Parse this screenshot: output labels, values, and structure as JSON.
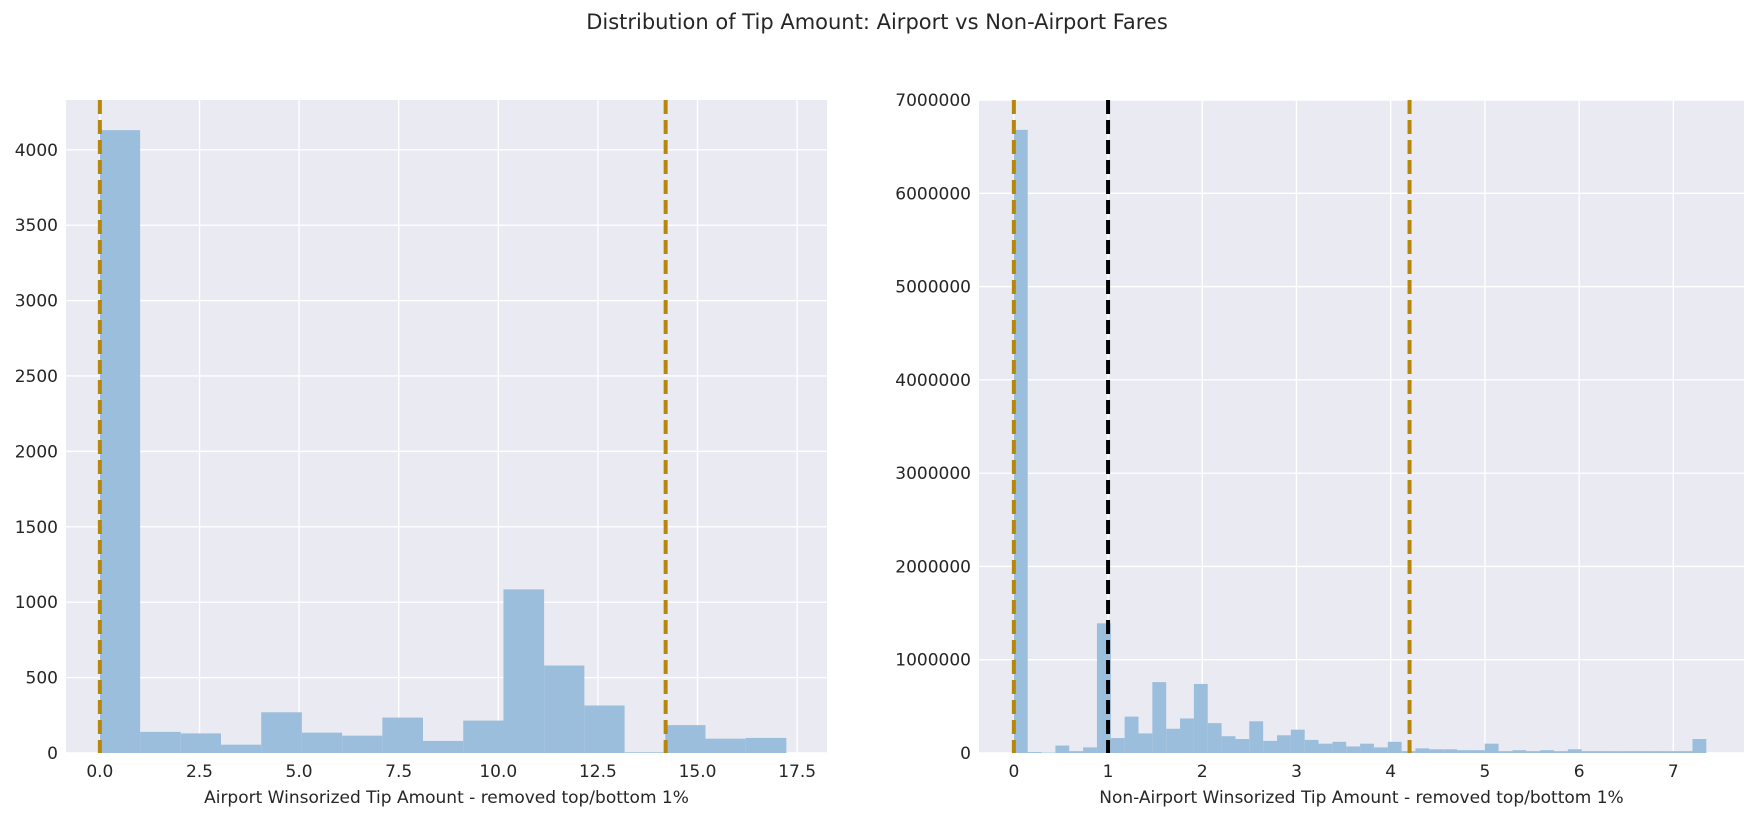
{
  "figure": {
    "title": "Distribution of Tip Amount: Airport vs Non-Airport Fares"
  },
  "colors": {
    "background_axes": "#EAEAF2",
    "grid": "#FFFFFF",
    "bars": "#9BBEDC",
    "guide_line": "#B8860B",
    "mean_line": "#000000",
    "text": "#262626"
  },
  "chart_data": [
    {
      "type": "bar",
      "subtype": "histogram",
      "xlabel": "Airport Winsorized Tip Amount - removed top/bottom 1%",
      "ylabel": "",
      "xlim": [
        -0.85,
        18.25
      ],
      "ylim": [
        0,
        4330
      ],
      "xticks": [
        0,
        2.5,
        5,
        7.5,
        10,
        12.5,
        15,
        17.5
      ],
      "xtick_labels": [
        "0.0",
        "2.5",
        "5.0",
        "7.5",
        "10.0",
        "12.5",
        "15.0",
        "17.5"
      ],
      "yticks": [
        0,
        500,
        1000,
        1500,
        2000,
        2500,
        3000,
        3500,
        4000
      ],
      "ytick_labels": [
        "0",
        "500",
        "1000",
        "1500",
        "2000",
        "2500",
        "3000",
        "3500",
        "4000"
      ],
      "grid": true,
      "bin_edges": [
        0,
        1.01,
        2.03,
        3.04,
        4.05,
        5.07,
        6.08,
        7.09,
        8.11,
        9.12,
        10.13,
        11.15,
        12.16,
        13.17,
        14.19,
        15.2,
        16.21,
        17.23
      ],
      "values": [
        4130,
        140,
        130,
        55,
        270,
        135,
        115,
        235,
        80,
        215,
        1085,
        580,
        315,
        5,
        185,
        95,
        100
      ],
      "vlines": [
        {
          "x": 0.0,
          "style": "dashed",
          "color": "#B8860B"
        },
        {
          "x": 14.2,
          "style": "dashed",
          "color": "#B8860B"
        }
      ]
    },
    {
      "type": "bar",
      "subtype": "histogram",
      "xlabel": "Non-Airport Winsorized Tip Amount - removed top/bottom 1%",
      "ylabel": "",
      "xlim": [
        -0.37,
        7.75
      ],
      "ylim": [
        0,
        7000000
      ],
      "xticks": [
        0,
        1,
        2,
        3,
        4,
        5,
        6,
        7
      ],
      "xtick_labels": [
        "0",
        "1",
        "2",
        "3",
        "4",
        "5",
        "6",
        "7"
      ],
      "yticks": [
        0,
        1000000,
        2000000,
        3000000,
        4000000,
        5000000,
        6000000,
        7000000
      ],
      "ytick_labels": [
        "0",
        "1000000",
        "2000000",
        "3000000",
        "4000000",
        "5000000",
        "6000000",
        "7000000"
      ],
      "grid": true,
      "bin_edges": [
        0,
        0.147,
        0.294,
        0.441,
        0.588,
        0.735,
        0.882,
        1.029,
        1.176,
        1.323,
        1.47,
        1.617,
        1.764,
        1.911,
        2.058,
        2.205,
        2.352,
        2.499,
        2.646,
        2.793,
        2.94,
        3.087,
        3.234,
        3.381,
        3.528,
        3.675,
        3.822,
        3.969,
        4.116,
        4.263,
        4.41,
        4.557,
        4.704,
        4.851,
        4.998,
        5.145,
        5.292,
        5.439,
        5.586,
        5.733,
        5.88,
        6.027,
        6.174,
        6.321,
        6.468,
        6.615,
        6.762,
        6.909,
        7.056,
        7.203,
        7.35
      ],
      "values": [
        6680000,
        10000,
        5000,
        80000,
        20000,
        60000,
        1390000,
        160000,
        390000,
        210000,
        760000,
        260000,
        370000,
        740000,
        320000,
        180000,
        150000,
        340000,
        130000,
        190000,
        250000,
        140000,
        100000,
        120000,
        70000,
        100000,
        60000,
        120000,
        20000,
        50000,
        40000,
        40000,
        30000,
        30000,
        100000,
        20000,
        30000,
        20000,
        30000,
        20000,
        40000,
        20000,
        20000,
        20000,
        20000,
        20000,
        20000,
        20000,
        20000,
        150000
      ],
      "vlines": [
        {
          "x": 0.0,
          "style": "dashed",
          "color": "#B8860B"
        },
        {
          "x": 1.0,
          "style": "dashed",
          "color": "#000000"
        },
        {
          "x": 4.2,
          "style": "dashed",
          "color": "#B8860B"
        }
      ]
    }
  ]
}
